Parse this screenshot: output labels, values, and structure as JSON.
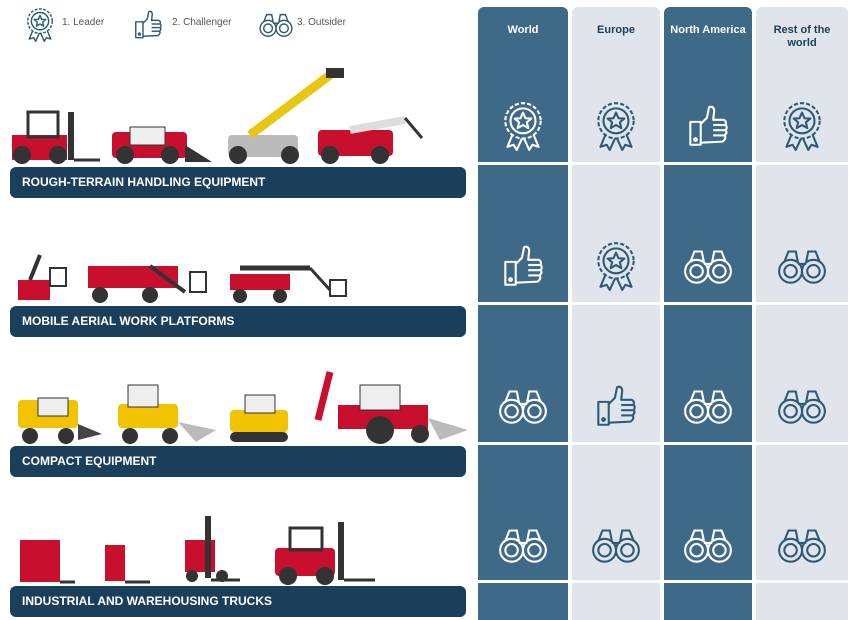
{
  "legend": [
    "1. Leader",
    "2. Challenger",
    "3. Outsider"
  ],
  "columns": [
    "World",
    "Europe",
    "North America",
    "Rest of the world"
  ],
  "rows": [
    {
      "label": "ROUGH-TERRAIN HANDLING EQUIPMENT",
      "ratings": [
        1,
        1,
        2,
        1
      ]
    },
    {
      "label": "MOBILE AERIAL WORK PLATFORMS",
      "ratings": [
        2,
        1,
        3,
        3
      ]
    },
    {
      "label": "COMPACT EQUIPMENT",
      "ratings": [
        3,
        2,
        3,
        3
      ]
    },
    {
      "label": "INDUSTRIAL AND WAREHOUSING TRUCKS",
      "ratings": [
        3,
        3,
        3,
        3
      ]
    }
  ]
}
